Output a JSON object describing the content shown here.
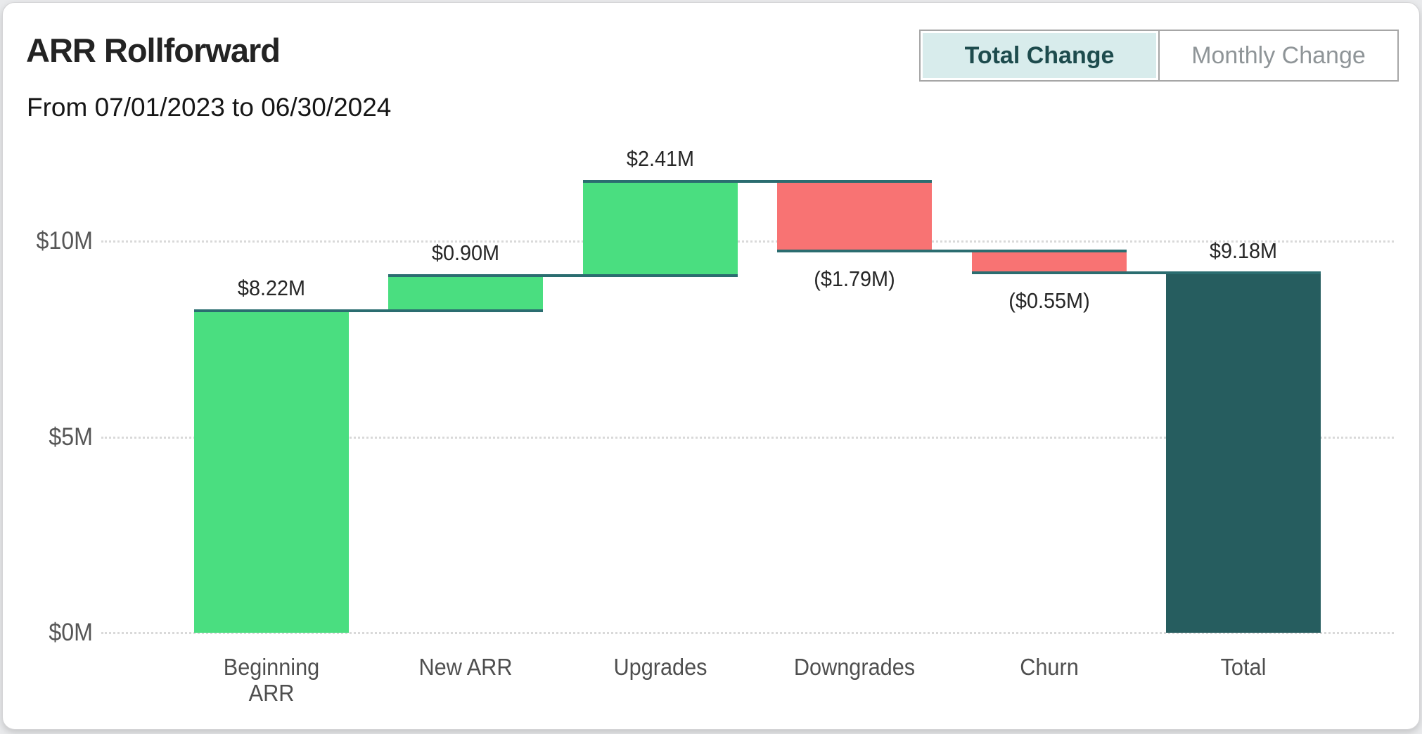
{
  "header": {
    "title": "ARR Rollforward",
    "subtitle": "From 07/01/2023 to 06/30/2024"
  },
  "toggle": {
    "options": [
      {
        "label": "Total Change",
        "selected": true
      },
      {
        "label": "Monthly Change",
        "selected": false
      }
    ]
  },
  "colors": {
    "increase": "#4ade80",
    "decrease": "#f87373",
    "total": "#265d5f",
    "connector": "#2b6d70",
    "selected_toggle_bg": "#d8ecec",
    "selected_toggle_text": "#1d4b4d",
    "grid": "#d9d9d9"
  },
  "chart_data": {
    "type": "bar",
    "subtype": "waterfall",
    "title": "ARR Rollforward",
    "period": "From 07/01/2023 to 06/30/2024",
    "categories": [
      "Beginning ARR",
      "New ARR",
      "Upgrades",
      "Downgrades",
      "Churn",
      "Total"
    ],
    "steps": [
      {
        "label": "Beginning ARR",
        "value": 8.22,
        "display": "$8.22M",
        "kind": "increase",
        "start": 0,
        "end": 8.22
      },
      {
        "label": "New ARR",
        "value": 0.9,
        "display": "$0.90M",
        "kind": "increase",
        "start": 8.22,
        "end": 9.12
      },
      {
        "label": "Upgrades",
        "value": 2.41,
        "display": "$2.41M",
        "kind": "increase",
        "start": 9.12,
        "end": 11.53
      },
      {
        "label": "Downgrades",
        "value": -1.79,
        "display": "($1.79M)",
        "kind": "decrease",
        "start": 11.53,
        "end": 9.74
      },
      {
        "label": "Churn",
        "value": -0.55,
        "display": "($0.55M)",
        "kind": "decrease",
        "start": 9.74,
        "end": 9.19
      },
      {
        "label": "Total",
        "value": 9.18,
        "display": "$9.18M",
        "kind": "total",
        "start": 0,
        "end": 9.18
      }
    ],
    "xlabel": "",
    "ylabel": "",
    "y_axis": {
      "ticks": [
        {
          "label": "$0M",
          "value": 0
        },
        {
          "label": "$5M",
          "value": 5
        },
        {
          "label": "$10M",
          "value": 10
        }
      ],
      "range": [
        0,
        13.2
      ]
    },
    "legend": "none",
    "grid": "horizontal dotted"
  }
}
